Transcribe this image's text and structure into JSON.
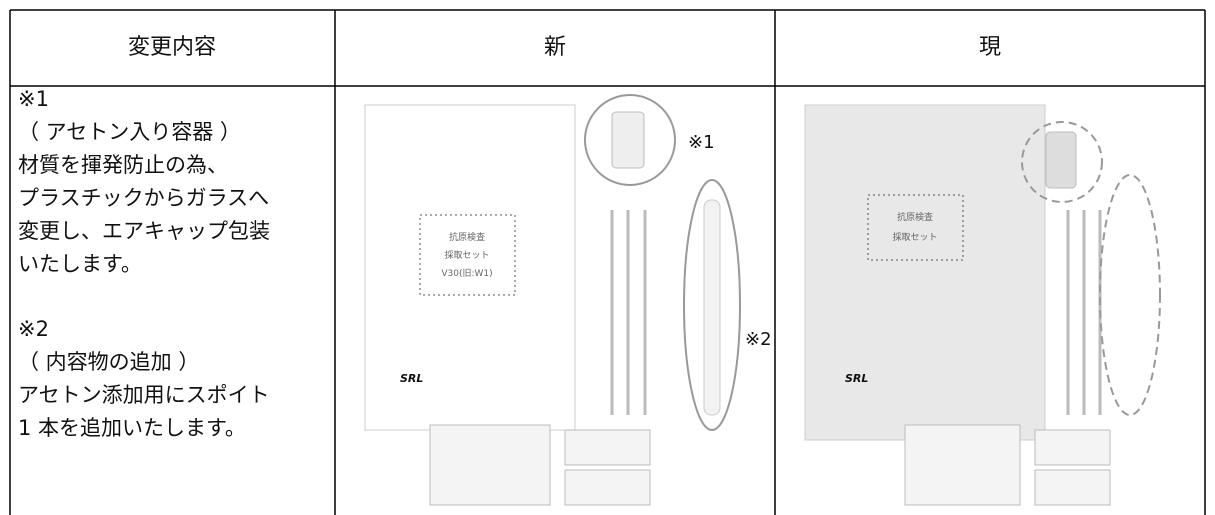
{
  "table": {
    "header": [
      "変更内容",
      "新",
      "現"
    ],
    "description": [
      "※1",
      "（ アセトン入り容器 ）",
      "材質を揮発防止の為、",
      "プラスチックからガラスへ",
      "変更し、エアキャップ包装",
      "いたします。",
      "※2",
      "（ 内容物の追加 ）",
      "アセトン添加用にスポイト",
      "1 本を追加いたします。"
    ],
    "new_image": {
      "bag_label": [
        "抗原検査",
        "採取セット",
        "V30(旧:W1)"
      ],
      "logo": "SRL",
      "note_1": "※1",
      "note_2": "※2"
    },
    "old_image": {
      "bag_label": [
        "抗原検査",
        "採取セット"
      ],
      "logo": "SRL"
    }
  }
}
